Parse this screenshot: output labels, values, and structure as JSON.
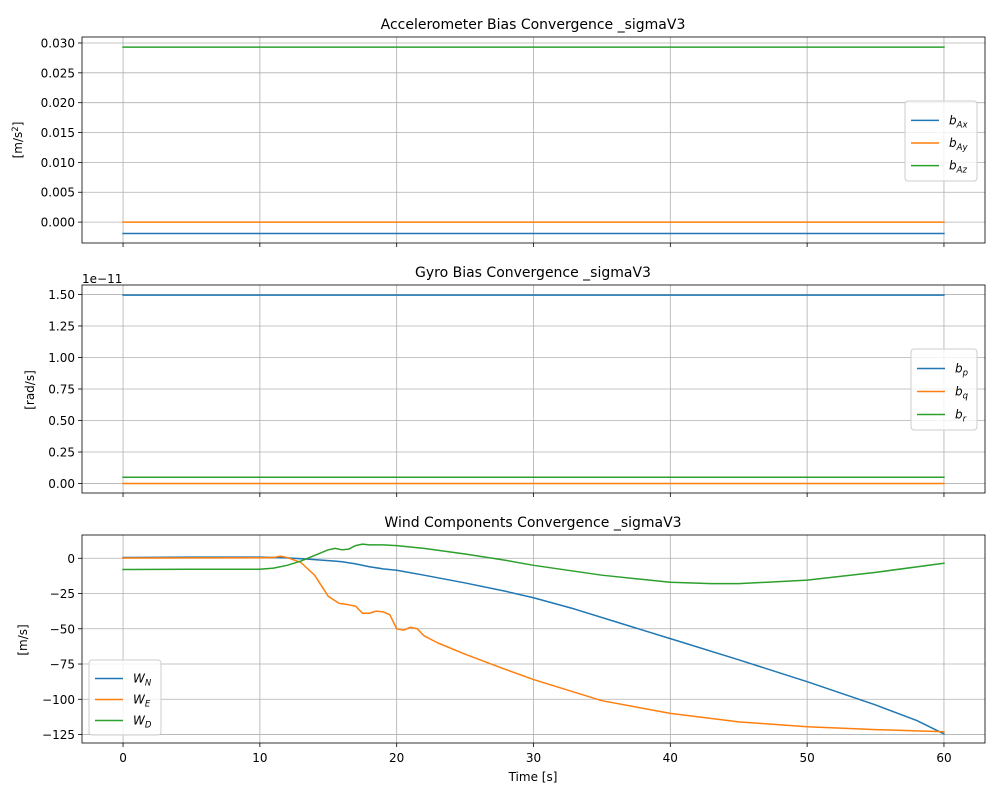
{
  "chart_data": [
    {
      "type": "line",
      "title": "Accelerometer Bias Convergence _sigmaV3",
      "ylabel": "[m/s²]",
      "ylabel_main": "[m/s",
      "ylabel_sup": "2",
      "ylabel_end": "]",
      "xlabel": "",
      "xlim": [
        -3,
        63
      ],
      "ylim": [
        -0.0035,
        0.031
      ],
      "xticks": [
        0,
        10,
        20,
        30,
        40,
        50,
        60
      ],
      "xtick_labels_visible": false,
      "yticks": [
        0.0,
        0.005,
        0.01,
        0.015,
        0.02,
        0.025,
        0.03
      ],
      "ytick_labels": [
        "0.000",
        "0.005",
        "0.010",
        "0.015",
        "0.020",
        "0.025",
        "0.030"
      ],
      "offset_label": "",
      "grid": true,
      "legend_loc": "center-right",
      "series": [
        {
          "name": "bAx",
          "name_main": "b",
          "name_sub": "Ax",
          "color": "#1f77b4",
          "x": [
            0,
            60
          ],
          "y": [
            -0.0019,
            -0.0019
          ]
        },
        {
          "name": "bAy",
          "name_main": "b",
          "name_sub": "Ay",
          "color": "#ff7f0e",
          "x": [
            0,
            60
          ],
          "y": [
            0.0,
            0.0
          ]
        },
        {
          "name": "bAz",
          "name_main": "b",
          "name_sub": "Az",
          "color": "#2ca02c",
          "x": [
            0,
            60
          ],
          "y": [
            0.0293,
            0.0293
          ]
        }
      ]
    },
    {
      "type": "line",
      "title": "Gyro Bias Convergence _sigmaV3",
      "ylabel": "[rad/s]",
      "xlabel": "",
      "xlim": [
        -3,
        63
      ],
      "ylim": [
        -0.075,
        1.575
      ],
      "xticks": [
        0,
        10,
        20,
        30,
        40,
        50,
        60
      ],
      "xtick_labels_visible": false,
      "yticks": [
        0.0,
        0.25,
        0.5,
        0.75,
        1.0,
        1.25,
        1.5
      ],
      "ytick_labels": [
        "0.00",
        "0.25",
        "0.50",
        "0.75",
        "1.00",
        "1.25",
        "1.50"
      ],
      "offset_label": "1e−11",
      "grid": true,
      "legend_loc": "center-right",
      "series": [
        {
          "name": "bp",
          "name_main": "b",
          "name_sub": "p",
          "color": "#1f77b4",
          "x": [
            0,
            60
          ],
          "y": [
            1.495,
            1.495
          ]
        },
        {
          "name": "bq",
          "name_main": "b",
          "name_sub": "q",
          "color": "#ff7f0e",
          "x": [
            0,
            60
          ],
          "y": [
            0.0,
            0.0
          ]
        },
        {
          "name": "br",
          "name_main": "b",
          "name_sub": "r",
          "color": "#2ca02c",
          "x": [
            0,
            60
          ],
          "y": [
            0.05,
            0.05
          ]
        }
      ]
    },
    {
      "type": "line",
      "title": "Wind Components Convergence _sigmaV3",
      "ylabel": "[m/s]",
      "xlabel": "Time [s]",
      "xlim": [
        -3,
        63
      ],
      "ylim": [
        -131,
        16.5
      ],
      "xticks": [
        0,
        10,
        20,
        30,
        40,
        50,
        60
      ],
      "xtick_labels_visible": true,
      "xtick_labels": [
        "0",
        "10",
        "20",
        "30",
        "40",
        "50",
        "60"
      ],
      "yticks": [
        -125,
        -100,
        -75,
        -50,
        -25,
        0
      ],
      "ytick_labels": [
        "−125",
        "−100",
        "−75",
        "−50",
        "−25",
        "0"
      ],
      "offset_label": "",
      "grid": true,
      "legend_loc": "lower-left",
      "series": [
        {
          "name": "WN",
          "name_main": "W",
          "name_sub": "N",
          "color": "#1f77b4",
          "x": [
            0,
            5,
            10,
            12,
            14,
            15.5,
            16,
            17,
            18,
            19,
            20,
            22,
            25,
            28,
            30,
            33,
            36,
            40,
            45,
            50,
            55,
            58,
            60
          ],
          "y": [
            0.5,
            0.8,
            0.8,
            0.3,
            -1,
            -2,
            -2.5,
            -4,
            -6,
            -7.5,
            -8.5,
            -12,
            -17.5,
            -23.5,
            -28,
            -36,
            -45,
            -57,
            -72,
            -87.5,
            -104,
            -115,
            -124.5
          ]
        },
        {
          "name": "WE",
          "name_main": "W",
          "name_sub": "E",
          "color": "#ff7f0e",
          "x": [
            0,
            5,
            10,
            11,
            11.5,
            12,
            13,
            14,
            15,
            15.8,
            16.5,
            17,
            17.5,
            18,
            18.5,
            19,
            19.5,
            20,
            20.5,
            21,
            21.5,
            22,
            23,
            25,
            28,
            30,
            35,
            40,
            45,
            50,
            55,
            60
          ],
          "y": [
            0.2,
            0.3,
            0.4,
            0.5,
            1.5,
            0.5,
            -3,
            -12,
            -27,
            -32,
            -33,
            -34,
            -39,
            -39,
            -37.5,
            -38,
            -40,
            -50,
            -51,
            -49,
            -50,
            -55,
            -60,
            -68,
            -79,
            -86,
            -101,
            -110,
            -116,
            -119.5,
            -121.5,
            -123
          ]
        },
        {
          "name": "WD",
          "name_main": "W",
          "name_sub": "D",
          "color": "#2ca02c",
          "x": [
            0,
            5,
            10,
            11,
            12,
            13,
            14,
            15,
            15.5,
            16,
            16.5,
            17,
            17.5,
            18,
            19,
            20,
            22,
            25,
            28,
            30,
            35,
            40,
            43,
            45,
            50,
            55,
            60
          ],
          "y": [
            -8,
            -7.8,
            -7.8,
            -7,
            -5,
            -2,
            2,
            6,
            7,
            6,
            6.5,
            9,
            10,
            9.5,
            9.5,
            9,
            7,
            3,
            -1.5,
            -5,
            -12,
            -17,
            -18,
            -18,
            -15.5,
            -10,
            -3.5
          ]
        }
      ]
    }
  ]
}
